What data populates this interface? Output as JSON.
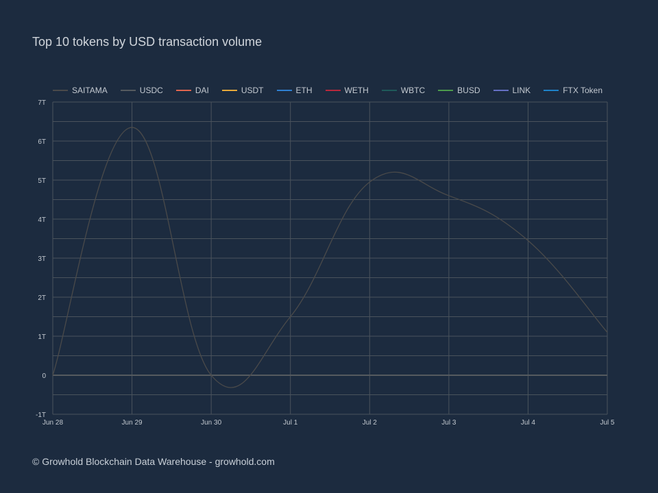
{
  "title": "Top 10 tokens by USD transaction volume",
  "footer": "© Growhold Blockchain Data Warehouse - growhold.com",
  "chart_data": {
    "type": "line",
    "title": "Top 10 tokens by USD transaction volume",
    "xlabel": "",
    "ylabel": "",
    "x": [
      "Jun 28",
      "Jun 29",
      "Jun 30",
      "Jul 1",
      "Jul 2",
      "Jul 3",
      "Jul 4",
      "Jul 5"
    ],
    "y_ticks": [
      "7T",
      "6T",
      "5T",
      "4T",
      "3T",
      "2T",
      "1T",
      "0",
      "-1T"
    ],
    "ylim": [
      -1,
      7
    ],
    "y_unit": "T",
    "grid": true,
    "legend_position": "top",
    "series": [
      {
        "name": "SAITAMA",
        "color": "#4a4a4a",
        "values": [
          0,
          6.35,
          0,
          1.5,
          4.95,
          4.6,
          3.45,
          1.1
        ]
      },
      {
        "name": "USDC",
        "color": "#555a5f",
        "values": [
          0,
          0,
          0,
          0,
          0,
          0,
          0,
          0
        ]
      },
      {
        "name": "DAI",
        "color": "#e0654f",
        "values": [
          0,
          0,
          0,
          0,
          0,
          0,
          0,
          0
        ]
      },
      {
        "name": "USDT",
        "color": "#e6a93a",
        "values": [
          0,
          0,
          0,
          0,
          0,
          0,
          0,
          0
        ]
      },
      {
        "name": "ETH",
        "color": "#2f7fd1",
        "values": [
          0,
          0,
          0,
          0,
          0,
          0,
          0,
          0
        ]
      },
      {
        "name": "WETH",
        "color": "#b8283c",
        "values": [
          0,
          0,
          0,
          0,
          0,
          0,
          0,
          0
        ]
      },
      {
        "name": "WBTC",
        "color": "#1f5a5a",
        "values": [
          0,
          0,
          0,
          0,
          0,
          0,
          0,
          0
        ]
      },
      {
        "name": "BUSD",
        "color": "#4c9a4c",
        "values": [
          0,
          0,
          0,
          0,
          0,
          0,
          0,
          0
        ]
      },
      {
        "name": "LINK",
        "color": "#6570c4",
        "values": [
          0,
          0,
          0,
          0,
          0,
          0,
          0,
          0
        ]
      },
      {
        "name": "FTX Token",
        "color": "#1e82c8",
        "values": [
          0,
          0,
          0,
          0,
          0,
          0,
          0,
          0
        ]
      }
    ]
  }
}
